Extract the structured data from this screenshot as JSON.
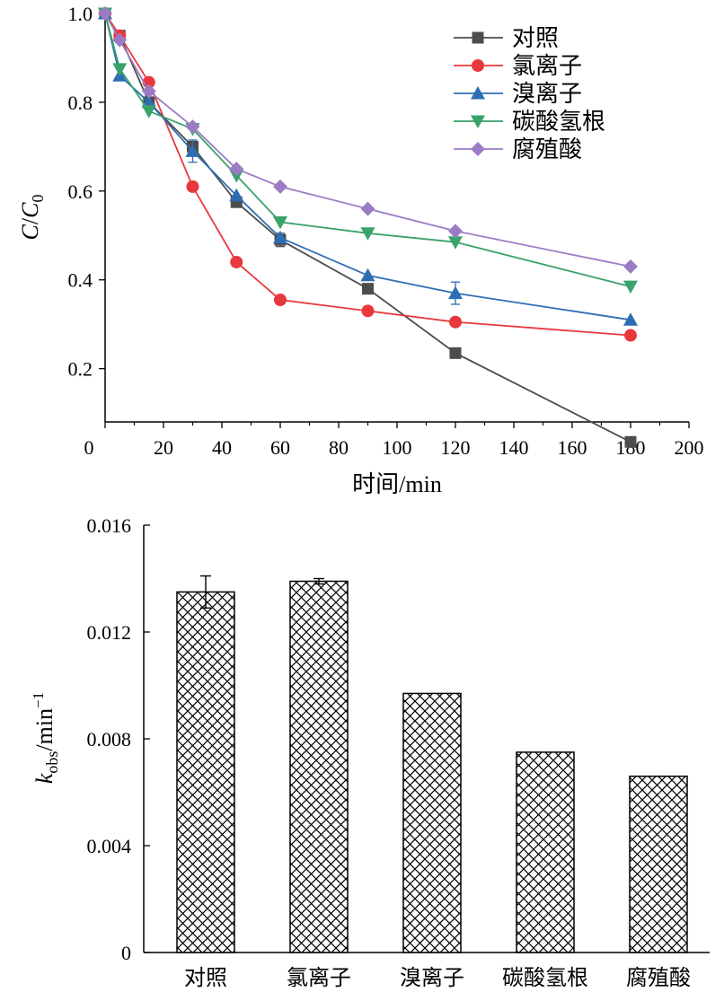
{
  "chart_data": [
    {
      "type": "line",
      "xlabel": "时间/min",
      "ylabel": {
        "italic1": "C",
        "slash": "/",
        "italic2": "C",
        "sub": "0"
      },
      "xlim": [
        0,
        200
      ],
      "ylim": [
        0.08,
        1.0
      ],
      "xticks": [
        0,
        20,
        40,
        60,
        80,
        100,
        120,
        140,
        160,
        180,
        200
      ],
      "yticks": [
        0.2,
        0.4,
        0.6,
        0.8,
        1.0
      ],
      "xtick_labels": [
        "0",
        "20",
        "40",
        "60",
        "80",
        "100",
        "120",
        "140",
        "160",
        "180",
        "200"
      ],
      "ytick_labels": [
        "0.2",
        "0.4",
        "0.6",
        "0.8",
        "1.0"
      ],
      "grid": false,
      "legend_position": "top-right",
      "series": [
        {
          "name": "对照",
          "color": "#4d4d4d",
          "marker": "square",
          "x": [
            0,
            5,
            15,
            30,
            45,
            60,
            90,
            120,
            180
          ],
          "y": [
            1.0,
            0.95,
            0.8,
            0.7,
            0.575,
            0.49,
            0.38,
            0.235,
            0.035
          ],
          "err": [
            0,
            0,
            0,
            0,
            0,
            0.015,
            0,
            0,
            0
          ]
        },
        {
          "name": "氯离子",
          "color": "#e8383d",
          "marker": "circle",
          "x": [
            0,
            5,
            15,
            30,
            45,
            60,
            90,
            120,
            180
          ],
          "y": [
            1.0,
            0.95,
            0.845,
            0.61,
            0.44,
            0.355,
            0.33,
            0.305,
            0.275
          ],
          "err": [
            0,
            0,
            0,
            0,
            0,
            0,
            0,
            0,
            0
          ]
        },
        {
          "name": "溴离子",
          "color": "#2e6db4",
          "marker": "triangle-up",
          "x": [
            0,
            5,
            15,
            30,
            45,
            60,
            90,
            120,
            180
          ],
          "y": [
            1.0,
            0.86,
            0.8,
            0.69,
            0.59,
            0.495,
            0.41,
            0.37,
            0.31
          ],
          "err": [
            0,
            0,
            0,
            0.025,
            0,
            0,
            0,
            0.025,
            0
          ]
        },
        {
          "name": "碳酸氢根",
          "color": "#3aa26b",
          "marker": "triangle-down",
          "x": [
            0,
            5,
            15,
            30,
            45,
            60,
            90,
            120,
            180
          ],
          "y": [
            1.0,
            0.875,
            0.78,
            0.74,
            0.635,
            0.53,
            0.505,
            0.485,
            0.385
          ],
          "err": [
            0,
            0,
            0,
            0,
            0,
            0,
            0,
            0,
            0
          ]
        },
        {
          "name": "腐殖酸",
          "color": "#9b7cc4",
          "marker": "diamond",
          "x": [
            0,
            5,
            15,
            30,
            45,
            60,
            90,
            120,
            180
          ],
          "y": [
            1.0,
            0.94,
            0.825,
            0.745,
            0.65,
            0.61,
            0.56,
            0.51,
            0.43
          ],
          "err": [
            0,
            0,
            0,
            0,
            0,
            0,
            0,
            0,
            0
          ]
        }
      ]
    },
    {
      "type": "bar",
      "categories": [
        "对照",
        "氯离子",
        "溴离子",
        "碳酸氢根",
        "腐殖酸"
      ],
      "values": [
        0.0135,
        0.0139,
        0.0097,
        0.0075,
        0.0066
      ],
      "errors": [
        0.0006,
        0.0001,
        0,
        0,
        0
      ],
      "ylabel": {
        "italic": "k",
        "sub": "obs",
        "rest": "/min",
        "sup": "−1"
      },
      "ylim": [
        0,
        0.016
      ],
      "yticks": [
        0,
        0.004,
        0.008,
        0.012,
        0.016
      ],
      "ytick_labels": [
        "0",
        "0.004",
        "0.008",
        "0.012",
        "0.016"
      ],
      "fill": "crosshatch",
      "grid": false
    }
  ]
}
